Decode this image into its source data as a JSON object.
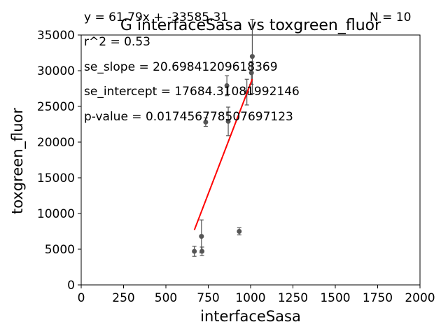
{
  "chart_data": {
    "type": "scatter",
    "title": "G interfaceSasa vs toxgreen_fluor",
    "xlabel": "interfaceSasa",
    "ylabel": "toxgreen_fluor",
    "xlim": [
      0,
      2000
    ],
    "ylim": [
      0,
      35000
    ],
    "xticks": [
      0,
      250,
      500,
      750,
      1000,
      1250,
      1500,
      1750,
      2000
    ],
    "yticks": [
      0,
      5000,
      10000,
      15000,
      20000,
      25000,
      30000,
      35000
    ],
    "grid": false,
    "points": [
      {
        "x": 668,
        "y": 4700,
        "err": 700
      },
      {
        "x": 710,
        "y": 6800,
        "err": 2300
      },
      {
        "x": 713,
        "y": 4700,
        "err": 600
      },
      {
        "x": 735,
        "y": 22800,
        "err": 600
      },
      {
        "x": 860,
        "y": 27900,
        "err": 1400
      },
      {
        "x": 868,
        "y": 22900,
        "err": 2000
      },
      {
        "x": 933,
        "y": 7500,
        "err": 500
      },
      {
        "x": 978,
        "y": 27000,
        "err": 1800
      },
      {
        "x": 1005,
        "y": 29700,
        "err": 1600
      },
      {
        "x": 1010,
        "y": 32000,
        "err": 5200
      }
    ],
    "fit_line": {
      "x": [
        668,
        1010
      ],
      "color": "#ff0000",
      "slope": 61.79,
      "intercept": -33585.31
    },
    "point_color": "#555555",
    "annotations": {
      "equation": "y = 61.79x + -33585.31",
      "n": "N = 10",
      "r2": "r^2 = 0.53",
      "se_slope": "se_slope = 20.69841209618369",
      "se_intercept": "se_intercept = 17684.31081992146",
      "p_value": "p-value = 0.017456778507697123"
    }
  }
}
